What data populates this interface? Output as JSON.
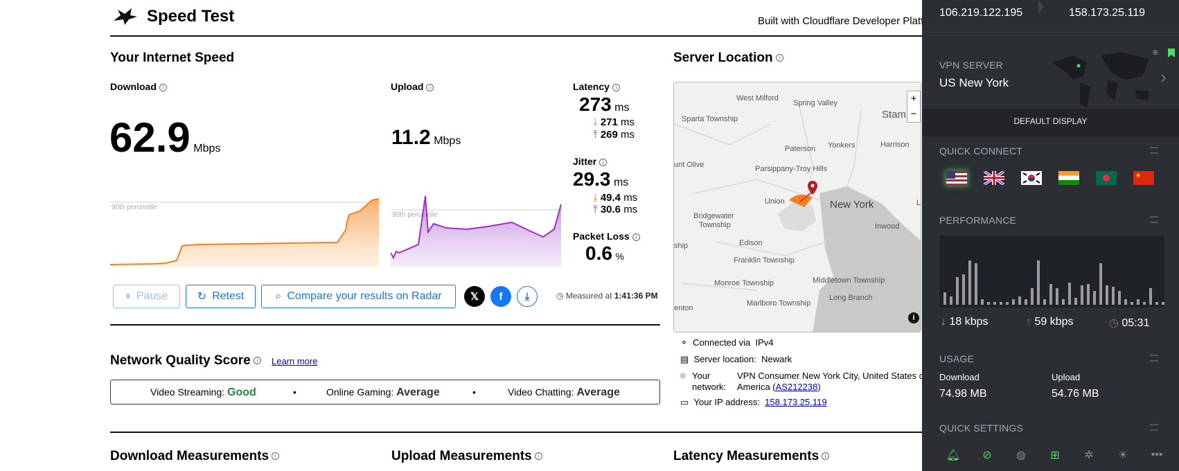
{
  "header": {
    "title": "Speed Test",
    "built_with": "Built with Cloudflare Developer Platf"
  },
  "speed": {
    "section_title": "Your Internet Speed",
    "download": {
      "label": "Download",
      "value": "62.9",
      "unit": "Mbps",
      "percentile_label": "90th percentile"
    },
    "upload": {
      "label": "Upload",
      "value": "11.2",
      "unit": "Mbps",
      "percentile_label": "90th percentile"
    },
    "latency": {
      "label": "Latency",
      "value": "273",
      "unit": "ms",
      "down": "271",
      "up": "269",
      "sub_unit": "ms"
    },
    "jitter": {
      "label": "Jitter",
      "value": "29.3",
      "unit": "ms",
      "down": "49.4",
      "up": "30.6",
      "sub_unit": "ms"
    },
    "packet_loss": {
      "label": "Packet Loss",
      "value": "0.6",
      "unit": "%"
    }
  },
  "actions": {
    "pause": "Pause",
    "retest": "Retest",
    "compare": "Compare your results on Radar",
    "measured_prefix": "Measured at",
    "measured_time": "1:41:36 PM"
  },
  "quality": {
    "title": "Network Quality Score",
    "learn_more": "Learn more",
    "streaming_label": "Video Streaming:",
    "streaming_value": "Good",
    "gaming_label": "Online Gaming:",
    "gaming_value": "Average",
    "chatting_label": "Video Chatting:",
    "chatting_value": "Average",
    "good_color": "#1e8a3c"
  },
  "measurements": {
    "download": "Download Measurements",
    "upload": "Upload Measurements",
    "latency": "Latency Measurements"
  },
  "server": {
    "title": "Server Location",
    "map_labels": [
      "West Milford",
      "Spring Valley",
      "Stam",
      "Sparta Township",
      "Paterson",
      "Yonkers",
      "Harrison",
      "unt Olive",
      "Parsippany-Troy Hills",
      "Union",
      "New York",
      "Le",
      "Bridgewater",
      "Township",
      "Inwood",
      "ship",
      "Edison",
      "Franklin Township",
      "Monroe Township",
      "Middletown Township",
      "Long Branch",
      "Marlboro Township",
      "enton"
    ],
    "connected_label": "Connected via",
    "connected_value": "IPv4",
    "location_label": "Server location:",
    "location_value": "Newark",
    "network_label_1": "Your",
    "network_label_2": "network:",
    "network_value_1": "VPN Consumer New York City, United States c",
    "network_value_2": "America (",
    "network_asn": "AS212238",
    "network_value_3": ")",
    "ip_label": "Your IP address:",
    "ip_value": "158.173.25.119"
  },
  "vpn": {
    "ip_left": "106.219.122.195",
    "ip_right": "158.173.25.119",
    "server_label": "VPN SERVER",
    "server_value": "US New York",
    "default_display": "DEFAULT DISPLAY",
    "quick_connect": "QUICK CONNECT",
    "flags": [
      "us-flag",
      "uk-flag",
      "kr-flag",
      "in-flag",
      "bd-flag",
      "cn-flag"
    ],
    "performance": "PERFORMANCE",
    "down_rate": "18 kbps",
    "up_rate": "59 kbps",
    "elapsed": "05:31",
    "usage": "USAGE",
    "download_label": "Download",
    "download_value": "74.98 MB",
    "upload_label": "Upload",
    "upload_value": "54.76 MB",
    "quick_settings": "QUICK SETTINGS",
    "accent": "#4cd964"
  }
}
